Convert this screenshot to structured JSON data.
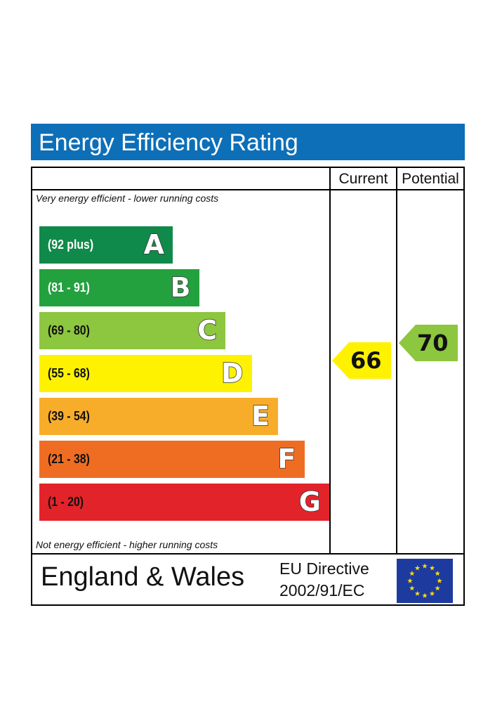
{
  "chart_data": {
    "type": "table",
    "title": "Energy Efficiency Rating",
    "columns": [
      "Current",
      "Potential"
    ],
    "top_note": "Very energy efficient - lower running costs",
    "bottom_note": "Not energy efficient - higher running costs",
    "bands": [
      {
        "letter": "A",
        "range": "(92 plus)",
        "color": "#0f8a4a",
        "text_color": "#ffffff"
      },
      {
        "letter": "B",
        "range": "(81 - 91)",
        "color": "#23a13f",
        "text_color": "#ffffff"
      },
      {
        "letter": "C",
        "range": "(69 - 80)",
        "color": "#8dc63f",
        "text_color": "#111111"
      },
      {
        "letter": "D",
        "range": "(55 - 68)",
        "color": "#fff200",
        "text_color": "#111111"
      },
      {
        "letter": "E",
        "range": "(39 - 54)",
        "color": "#f7ad2a",
        "text_color": "#111111"
      },
      {
        "letter": "F",
        "range": "(21 - 38)",
        "color": "#ef6d23",
        "text_color": "#111111"
      },
      {
        "letter": "G",
        "range": "(1 - 20)",
        "color": "#e3232a",
        "text_color": "#111111"
      }
    ],
    "ratings": [
      {
        "column": "Current",
        "value": 66,
        "band": "D",
        "color": "#fff200"
      },
      {
        "column": "Potential",
        "value": 70,
        "band": "C",
        "color": "#8dc63f"
      }
    ],
    "footer": {
      "country": "England & Wales",
      "directive_line1": "EU Directive",
      "directive_line2": "2002/91/EC"
    },
    "flag_icon": "eu-flag-icon"
  }
}
